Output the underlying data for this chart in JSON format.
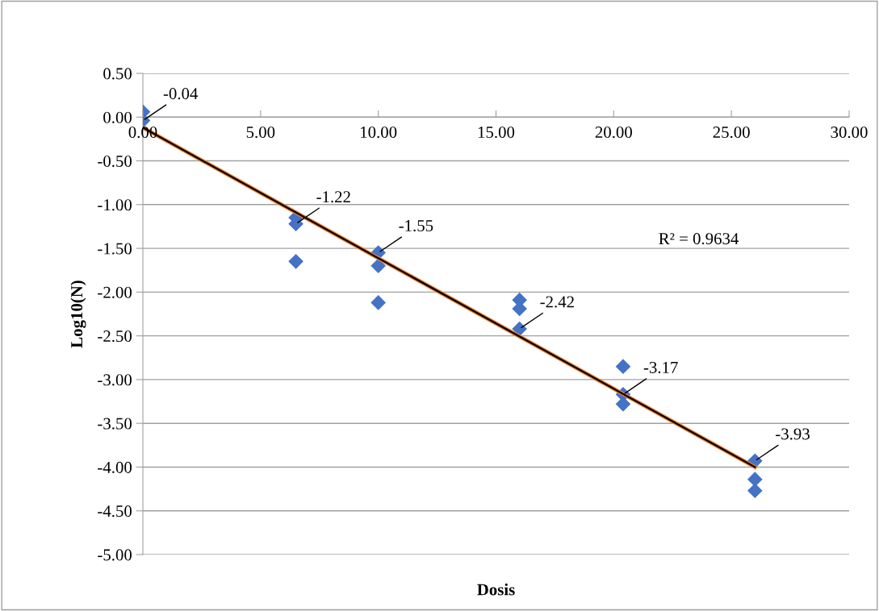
{
  "chart_data": {
    "type": "scatter",
    "xlabel": "Dosis",
    "ylabel": "Log10(N)",
    "xlim": [
      0,
      30
    ],
    "xticks": [
      {
        "value": 0,
        "label": "0.00"
      },
      {
        "value": 5,
        "label": "5.00"
      },
      {
        "value": 10,
        "label": "10.00"
      },
      {
        "value": 15,
        "label": "15.00"
      },
      {
        "value": 20,
        "label": "20.00"
      },
      {
        "value": 25,
        "label": "25.00"
      },
      {
        "value": 30,
        "label": "30.00"
      }
    ],
    "ylim": [
      -5,
      0.5
    ],
    "yticks": [
      {
        "value": 0.5,
        "label": "0.50"
      },
      {
        "value": 0,
        "label": "0.00"
      },
      {
        "value": -0.5,
        "label": "-0.50"
      },
      {
        "value": -1,
        "label": "-1.00"
      },
      {
        "value": -1.5,
        "label": "-1.50"
      },
      {
        "value": -2,
        "label": "-2.00"
      },
      {
        "value": -2.5,
        "label": "-2.50"
      },
      {
        "value": -3,
        "label": "-3.00"
      },
      {
        "value": -3.5,
        "label": "-3.50"
      },
      {
        "value": -4,
        "label": "-4.00"
      },
      {
        "value": -4.5,
        "label": "-4.50"
      },
      {
        "value": -5,
        "label": "-5.00"
      }
    ],
    "grid": "y",
    "series": [
      {
        "marker": "diamond",
        "color": "#4472c4",
        "x": [
          0,
          0,
          6.5,
          6.5,
          6.5,
          10,
          10,
          10,
          16,
          16,
          16,
          20.4,
          20.4,
          20.4,
          26,
          26,
          26
        ],
        "values": [
          0.06,
          -0.04,
          -1.15,
          -1.22,
          -1.65,
          -1.55,
          -1.7,
          -2.12,
          -2.09,
          -2.19,
          -2.42,
          -2.85,
          -3.17,
          -3.28,
          -3.93,
          -4.14,
          -4.27
        ]
      },
      {
        "type": "line",
        "marker": "none",
        "color": "#ed7d31",
        "x": [
          0,
          26
        ],
        "values": [
          -0.12,
          -4.0
        ]
      },
      {
        "type": "line",
        "marker": "none",
        "color": "#000000",
        "x": [
          0,
          26
        ],
        "values": [
          -0.12,
          -4.0
        ]
      }
    ],
    "annotations": [
      {
        "text": "-0.04",
        "x": 0,
        "y": -0.04
      },
      {
        "text": "-1.22",
        "x": 6.5,
        "y": -1.22
      },
      {
        "text": "-1.55",
        "x": 10,
        "y": -1.55
      },
      {
        "text": "-2.42",
        "x": 16,
        "y": -2.42
      },
      {
        "text": "-3.17",
        "x": 20.4,
        "y": -3.17
      },
      {
        "text": "-3.93",
        "x": 26,
        "y": -3.93
      },
      "R² = 0.9634"
    ]
  }
}
